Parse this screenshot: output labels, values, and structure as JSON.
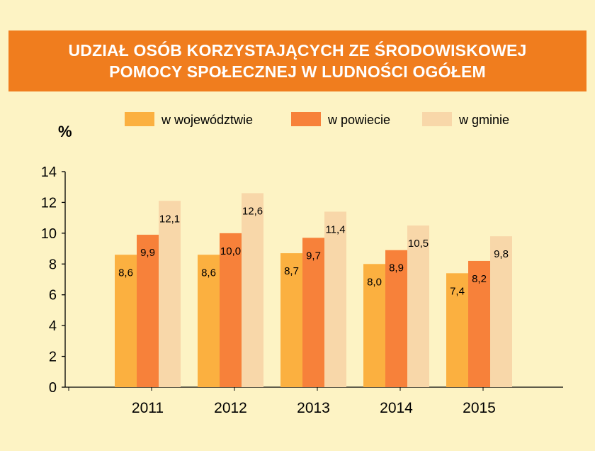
{
  "chart_data": {
    "type": "bar",
    "title": [
      "UDZIAŁ OSÓB KORZYSTAJĄCYCH ZE ŚRODOWISKOWEJ",
      "POMOCY SPOŁECZNEJ W LUDNOŚCI OGÓŁEM"
    ],
    "ylabel": "%",
    "categories": [
      "2011",
      "2012",
      "2013",
      "2014",
      "2015"
    ],
    "ylim": [
      0,
      14
    ],
    "yticks": [
      0,
      2,
      4,
      6,
      8,
      10,
      12,
      14
    ],
    "legend_position": "top",
    "grid": false,
    "series": [
      {
        "name": "w województwie",
        "color": "#fbb040",
        "values": [
          8.6,
          8.6,
          8.7,
          8.0,
          7.4
        ],
        "labels": [
          "8,6",
          "8,6",
          "8,7",
          "8,0",
          "7,4"
        ]
      },
      {
        "name": "w powiecie",
        "color": "#f7813a",
        "values": [
          9.9,
          10.0,
          9.7,
          8.9,
          8.2
        ],
        "labels": [
          "9,9",
          "10,0",
          "9,7",
          "8,9",
          "8,2"
        ]
      },
      {
        "name": "w gminie",
        "color": "#f8d7a9",
        "values": [
          12.1,
          12.6,
          11.4,
          10.5,
          9.8
        ],
        "labels": [
          "12,1",
          "12,6",
          "11,4",
          "10,5",
          "9,8"
        ]
      }
    ]
  }
}
